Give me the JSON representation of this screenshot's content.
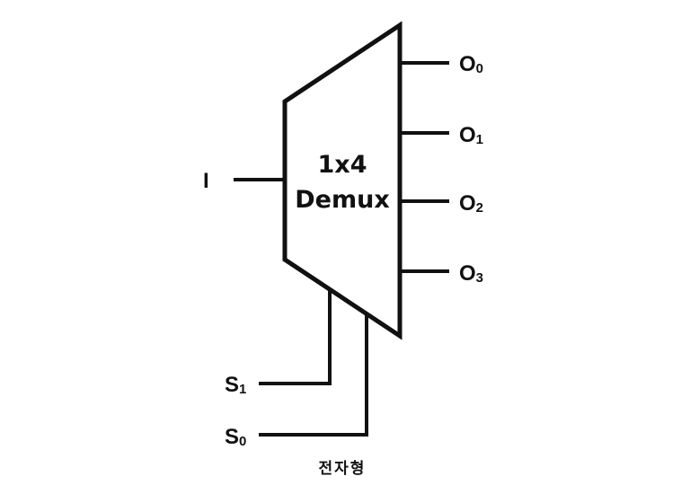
{
  "demux": {
    "title_line1": "1x4",
    "title_line2": "Demux"
  },
  "input": {
    "label": "I"
  },
  "outputs": [
    {
      "main": "O",
      "sub": "0"
    },
    {
      "main": "O",
      "sub": "1"
    },
    {
      "main": "O",
      "sub": "2"
    },
    {
      "main": "O",
      "sub": "3"
    }
  ],
  "selects": [
    {
      "main": "S",
      "sub": "1"
    },
    {
      "main": "S",
      "sub": "0"
    }
  ],
  "caption": "전자형"
}
